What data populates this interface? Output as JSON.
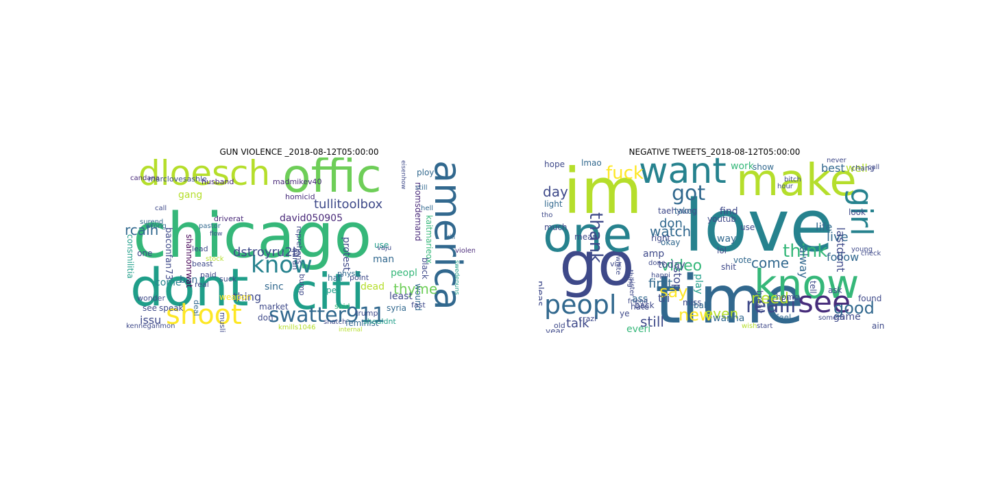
{
  "panels": [
    {
      "title": "GUN VIOLENCE _2018-08-12T05:00:00",
      "words": [
        {
          "t": "chicago",
          "c": "#35b779"
        },
        {
          "t": "dont",
          "c": "#1f9e89"
        },
        {
          "t": "offic",
          "c": "#6ece58"
        },
        {
          "t": "citi",
          "c": "#1f9e89"
        },
        {
          "t": "america",
          "c": "#31688e"
        },
        {
          "t": "dloesch",
          "c": "#b5de2b"
        },
        {
          "t": "shoot",
          "c": "#fde725"
        },
        {
          "t": "swatter911",
          "c": "#31688e"
        },
        {
          "t": "know",
          "c": "#26828e"
        },
        {
          "t": "tullitoolbox",
          "c": "#3e4989"
        },
        {
          "t": "dstroyru2b",
          "c": "#3e4989"
        },
        {
          "t": "rcalh",
          "c": "#31688e"
        },
        {
          "t": "david050905",
          "c": "#482878"
        },
        {
          "t": "thyme",
          "c": "#6ece58"
        },
        {
          "t": "madmikev40",
          "c": "#482878"
        },
        {
          "t": "homicid",
          "c": "#472d7b"
        },
        {
          "t": "thing",
          "c": "#3e4989"
        },
        {
          "t": "sinc",
          "c": "#31688e"
        },
        {
          "t": "issu",
          "c": "#3e4989"
        },
        {
          "t": "ban",
          "c": "#31688e"
        },
        {
          "t": "come",
          "c": "#26828e"
        },
        {
          "t": "weapon",
          "c": "#fde725"
        },
        {
          "t": "man",
          "c": "#31688e"
        },
        {
          "t": "peopl",
          "c": "#35b779"
        },
        {
          "t": "least",
          "c": "#3e4989"
        },
        {
          "t": "dead",
          "c": "#b5de2b"
        },
        {
          "t": "syria",
          "c": "#31688e"
        },
        {
          "t": "husband",
          "c": "#482878"
        },
        {
          "t": "gang",
          "c": "#b5de2b"
        },
        {
          "t": "surend",
          "c": "#31688e"
        },
        {
          "t": "pastor",
          "c": "#31688e"
        },
        {
          "t": "driverat",
          "c": "#482878"
        },
        {
          "t": "protest",
          "c": "#3e4989"
        },
        {
          "t": "consmilitia",
          "c": "#1f9e89"
        },
        {
          "t": "baconfan73",
          "c": "#3e4989"
        },
        {
          "t": "shannonrwat",
          "c": "#440154"
        },
        {
          "t": "momsdemand",
          "c": "#482878"
        },
        {
          "t": "kaitmarieox",
          "c": "#35b779"
        },
        {
          "t": "black",
          "c": "#3e4989"
        },
        {
          "t": "violent",
          "c": "#482878"
        },
        {
          "t": "kill",
          "c": "#31688e"
        },
        {
          "t": "hell",
          "c": "#31688e"
        },
        {
          "t": "ploy",
          "c": "#31688e"
        },
        {
          "t": "still",
          "c": "#31688e"
        },
        {
          "t": "one",
          "c": "#3e4989"
        },
        {
          "t": "wound",
          "c": "#31688e"
        },
        {
          "t": "trump",
          "c": "#3e4989"
        },
        {
          "t": "fast",
          "c": "#3e4989"
        },
        {
          "t": "per",
          "c": "#1f9e89"
        },
        {
          "t": "said",
          "c": "#35b779"
        },
        {
          "t": "use",
          "c": "#1f9e89"
        },
        {
          "t": "point",
          "c": "#3e4989"
        },
        {
          "t": "physic",
          "c": "#31688e"
        },
        {
          "t": "half",
          "c": "#31688e"
        },
        {
          "t": "market",
          "c": "#3e4989"
        },
        {
          "t": "speak",
          "c": "#3e4989"
        },
        {
          "t": "see",
          "c": "#3e4989"
        },
        {
          "t": "don",
          "c": "#3e4989"
        },
        {
          "t": "muslim",
          "c": "#3e4989"
        },
        {
          "t": "feminist",
          "c": "#31688e"
        },
        {
          "t": "shouldnt",
          "c": "#1f9e89"
        },
        {
          "t": "internal",
          "c": "#b5de2b"
        },
        {
          "t": "kenneganmon",
          "c": "#3e4989"
        },
        {
          "t": "kmills1046",
          "c": "#b5de2b"
        },
        {
          "t": "wonder",
          "c": "#3e4989"
        },
        {
          "t": "candana",
          "c": "#482878"
        },
        {
          "t": "marclovesashle",
          "c": "#3e4989"
        },
        {
          "t": "wrong",
          "c": "#31688e"
        },
        {
          "t": "lead",
          "c": "#3e4989"
        },
        {
          "t": "beast",
          "c": "#3e4989"
        },
        {
          "t": "paid",
          "c": "#3e4989"
        },
        {
          "t": "real",
          "c": "#3e4989"
        },
        {
          "t": "deal",
          "c": "#31688e"
        },
        {
          "t": "quran",
          "c": "#3e4989"
        },
        {
          "t": "stock",
          "c": "#b5de2b"
        },
        {
          "t": "suck",
          "c": "#3e4989"
        },
        {
          "t": "snatch",
          "c": "#3e4989"
        },
        {
          "t": "bump",
          "c": "#3e4989"
        },
        {
          "t": "vaju",
          "c": "#3e4989"
        },
        {
          "t": "reprehens",
          "c": "#3e4989"
        },
        {
          "t": "swedenuns",
          "c": "#1f9e89"
        },
        {
          "t": "eisenhow",
          "c": "#3e4989"
        },
        {
          "t": "call",
          "c": "#3e4989"
        },
        {
          "t": "flow",
          "c": "#3e4989"
        }
      ]
    },
    {
      "title": "NEGATIVE TWEETS_2018-08-12T05:00:00",
      "words": [
        {
          "t": "love",
          "c": "#26828e"
        },
        {
          "t": "time",
          "c": "#31688e"
        },
        {
          "t": "im",
          "c": "#b5de2b"
        },
        {
          "t": "go",
          "c": "#3e4989"
        },
        {
          "t": "one",
          "c": "#26828e"
        },
        {
          "t": "make",
          "c": "#b5de2b"
        },
        {
          "t": "know",
          "c": "#35b779"
        },
        {
          "t": "want",
          "c": "#26828e"
        },
        {
          "t": "peopl",
          "c": "#31688e"
        },
        {
          "t": "see",
          "c": "#472d7b"
        },
        {
          "t": "girl",
          "c": "#26828e"
        },
        {
          "t": "got",
          "c": "#31688e"
        },
        {
          "t": "fuck",
          "c": "#fde725"
        },
        {
          "t": "thank",
          "c": "#3e4989"
        },
        {
          "t": "day",
          "c": "#3e4989"
        },
        {
          "t": "realli",
          "c": "#3e4989"
        },
        {
          "t": "good",
          "c": "#31688e"
        },
        {
          "t": "think",
          "c": "#35b779"
        },
        {
          "t": "watch",
          "c": "#31688e"
        },
        {
          "t": "video",
          "c": "#35b779"
        },
        {
          "t": "come",
          "c": "#31688e"
        },
        {
          "t": "say",
          "c": "#fde725"
        },
        {
          "t": "need",
          "c": "#b5de2b"
        },
        {
          "t": "new",
          "c": "#fde725"
        },
        {
          "t": "even",
          "c": "#b5de2b"
        },
        {
          "t": "still",
          "c": "#3e4989"
        },
        {
          "t": "talk",
          "c": "#3e4989"
        },
        {
          "t": "live",
          "c": "#31688e"
        },
        {
          "t": "life",
          "c": "#31688e"
        },
        {
          "t": "best",
          "c": "#31688e"
        },
        {
          "t": "well",
          "c": "#b5de2b"
        },
        {
          "t": "hope",
          "c": "#3e4989"
        },
        {
          "t": "lmao",
          "c": "#31688e"
        },
        {
          "t": "work",
          "c": "#35b779"
        },
        {
          "t": "show",
          "c": "#31688e"
        },
        {
          "t": "today",
          "c": "#3e4989"
        },
        {
          "t": "first",
          "c": "#31688e"
        },
        {
          "t": "don",
          "c": "#31688e"
        },
        {
          "t": "amp",
          "c": "#3e4989"
        },
        {
          "t": "youtub",
          "c": "#3e4989"
        },
        {
          "t": "taehyung",
          "c": "#3e4989"
        },
        {
          "t": "follow",
          "c": "#31688e"
        },
        {
          "t": "game",
          "c": "#3e4989"
        },
        {
          "t": "lastdont",
          "c": "#3e4989"
        },
        {
          "t": "alway",
          "c": "#31688e"
        },
        {
          "t": "play",
          "c": "#1f9e89"
        },
        {
          "t": "light",
          "c": "#31688e"
        },
        {
          "t": "tri",
          "c": "#3e4989"
        },
        {
          "t": "okay",
          "c": "#31688e"
        },
        {
          "t": "way",
          "c": "#31688e"
        },
        {
          "t": "find",
          "c": "#3e4989"
        },
        {
          "t": "look",
          "c": "#3e4989"
        },
        {
          "t": "take",
          "c": "#31688e"
        },
        {
          "t": "stop",
          "c": "#3e4989"
        },
        {
          "t": "ass",
          "c": "#31688e"
        },
        {
          "t": "lol",
          "c": "#3e4989"
        },
        {
          "t": "wanna",
          "c": "#31688e"
        },
        {
          "t": "everi",
          "c": "#35b779"
        },
        {
          "t": "feel",
          "c": "#31688e"
        },
        {
          "t": "hate",
          "c": "#3e4989"
        },
        {
          "t": "miss",
          "c": "#3e4989"
        },
        {
          "t": "pleas",
          "c": "#3e4989"
        },
        {
          "t": "much",
          "c": "#3e4989"
        },
        {
          "t": "ask",
          "c": "#3e4989"
        },
        {
          "t": "call",
          "c": "#3e4989"
        },
        {
          "t": "never",
          "c": "#3e4989"
        },
        {
          "t": "found",
          "c": "#3e4989"
        },
        {
          "t": "break",
          "c": "#3e4989"
        },
        {
          "t": "shit",
          "c": "#3e4989"
        },
        {
          "t": "vote",
          "c": "#31688e"
        },
        {
          "t": "back",
          "c": "#3e4989"
        },
        {
          "t": "right",
          "c": "#3e4989"
        },
        {
          "t": "ye",
          "c": "#3e4989"
        },
        {
          "t": "babi",
          "c": "#31688e"
        },
        {
          "t": "tell",
          "c": "#3e4989"
        },
        {
          "t": "someth",
          "c": "#3e4989"
        },
        {
          "t": "home",
          "c": "#3e4989"
        },
        {
          "t": "use",
          "c": "#3e4989"
        },
        {
          "t": "ain",
          "c": "#3e4989"
        },
        {
          "t": "year",
          "c": "#3e4989"
        },
        {
          "t": "old",
          "c": "#3e4989"
        },
        {
          "t": "crazi",
          "c": "#3e4989"
        },
        {
          "t": "via",
          "c": "#3e4989"
        },
        {
          "t": "white",
          "c": "#3e4989"
        },
        {
          "t": "mean",
          "c": "#3e4989"
        },
        {
          "t": "tho",
          "c": "#3e4989"
        },
        {
          "t": "wish",
          "c": "#b5de2b"
        },
        {
          "t": "done",
          "c": "#3e4989"
        },
        {
          "t": "happi",
          "c": "#3e4989"
        },
        {
          "t": "sister",
          "c": "#3e4989"
        },
        {
          "t": "thing",
          "c": "#3e4989"
        },
        {
          "t": "check",
          "c": "#3e4989"
        },
        {
          "t": "young",
          "c": "#3e4989"
        },
        {
          "t": "chang",
          "c": "#3e4989"
        },
        {
          "t": "friend",
          "c": "#3e4989"
        },
        {
          "t": "start",
          "c": "#3e4989"
        },
        {
          "t": "bitch",
          "c": "#3e4989"
        },
        {
          "t": "hour",
          "c": "#3e4989"
        }
      ]
    }
  ]
}
